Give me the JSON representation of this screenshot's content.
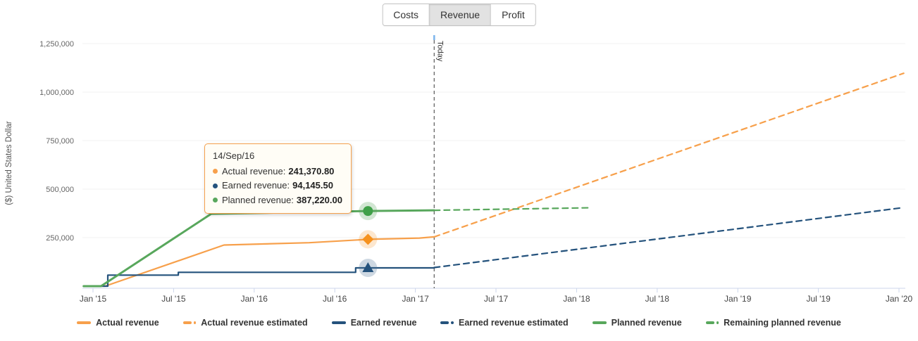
{
  "tabs": {
    "items": [
      {
        "label": "Costs",
        "active": false
      },
      {
        "label": "Revenue",
        "active": true
      },
      {
        "label": "Profit",
        "active": false
      }
    ]
  },
  "chart_data": {
    "type": "line",
    "ylabel": "($) United States Dollar",
    "currency": "United States Dollar",
    "grid": true,
    "legend_position": "bottom",
    "x_axis": {
      "start": "Jan 2015",
      "end": "Jan 2020",
      "ticks": [
        {
          "month": 0,
          "label": "Jan '15"
        },
        {
          "month": 6,
          "label": "Jul '15"
        },
        {
          "month": 12,
          "label": "Jan '16"
        },
        {
          "month": 18,
          "label": "Jul '16"
        },
        {
          "month": 24,
          "label": "Jan '17"
        },
        {
          "month": 30,
          "label": "Jul '17"
        },
        {
          "month": 36,
          "label": "Jan '18"
        },
        {
          "month": 42,
          "label": "Jul '18"
        },
        {
          "month": 48,
          "label": "Jan '19"
        },
        {
          "month": 54,
          "label": "Jul '19"
        },
        {
          "month": 60,
          "label": "Jan '20"
        }
      ]
    },
    "y_axis": {
      "ylim": [
        0,
        1312500
      ],
      "ticks": [
        {
          "value": 250000,
          "label": "250,000"
        },
        {
          "value": 500000,
          "label": "500,000"
        },
        {
          "value": 750000,
          "label": "750,000"
        },
        {
          "value": 1000000,
          "label": "1,000,000"
        },
        {
          "value": 1250000,
          "label": "1,250,000"
        }
      ]
    },
    "today_line": {
      "month": 25.4,
      "label": "Today",
      "color": "#666666",
      "tick_color": "#7cb5ec"
    },
    "series": [
      {
        "name": "Actual revenue",
        "color": "#F7A04B",
        "style": "solid",
        "width": 2.2,
        "points": [
          [
            -0.7,
            0
          ],
          [
            0.9,
            0
          ],
          [
            9.75,
            212000
          ],
          [
            16.1,
            224000
          ],
          [
            20.47,
            241370.8
          ],
          [
            24.3,
            248000
          ],
          [
            25.4,
            254000
          ]
        ]
      },
      {
        "name": "Actual revenue estimated",
        "color": "#F7A04B",
        "style": "dashed",
        "width": 2.2,
        "points": [
          [
            25.4,
            254000
          ],
          [
            60.35,
            1097000
          ]
        ]
      },
      {
        "name": "Earned revenue",
        "color": "#24527C",
        "style": "solid",
        "width": 2.2,
        "points": [
          [
            -0.7,
            0
          ],
          [
            1.1,
            0
          ],
          [
            1.1,
            57000
          ],
          [
            6.35,
            57000
          ],
          [
            6.35,
            71500
          ],
          [
            19.55,
            71500
          ],
          [
            19.55,
            94145.5
          ],
          [
            25.4,
            94145.5
          ]
        ]
      },
      {
        "name": "Earned revenue estimated",
        "color": "#24527C",
        "style": "dashed",
        "width": 2.2,
        "points": [
          [
            25.4,
            96000
          ],
          [
            60.35,
            405000
          ]
        ]
      },
      {
        "name": "Planned revenue",
        "color": "#58A75C",
        "style": "solid",
        "width": 3,
        "points": [
          [
            -0.7,
            0
          ],
          [
            0.6,
            0
          ],
          [
            8.8,
            373000
          ],
          [
            20.47,
            387220
          ],
          [
            25.4,
            391000
          ]
        ]
      },
      {
        "name": "Remaining planned revenue",
        "color": "#58A75C",
        "style": "dashed",
        "width": 2.2,
        "points": [
          [
            25.4,
            391000
          ],
          [
            37.1,
            404000
          ]
        ]
      }
    ],
    "markers": {
      "month": 20.47,
      "date": "14/Sep/16",
      "items": [
        {
          "series": "Planned revenue",
          "shape": "circle",
          "value": 387220,
          "color": "#3FA048",
          "halo": "rgba(88,167,92,0.28)"
        },
        {
          "series": "Actual revenue",
          "shape": "diamond",
          "value": 241370.8,
          "color": "#F6921E",
          "halo": "rgba(246,146,30,0.22)"
        },
        {
          "series": "Earned revenue",
          "shape": "triangle",
          "value": 94145.5,
          "color": "#24527C",
          "halo": "rgba(80,115,150,0.28)"
        }
      ]
    }
  },
  "tooltip": {
    "date": "14/Sep/16",
    "rows": [
      {
        "label": "Actual revenue:",
        "value": "241,370.80",
        "color": "#F7A04B"
      },
      {
        "label": "Earned revenue:",
        "value": "94,145.50",
        "color": "#24527C"
      },
      {
        "label": "Planned revenue:",
        "value": "387,220.00",
        "color": "#58A75C"
      }
    ]
  },
  "legend": {
    "items": [
      {
        "label": "Actual revenue",
        "color": "#F7A04B",
        "dashed": false
      },
      {
        "label": "Actual revenue estimated",
        "color": "#F7A04B",
        "dashed": true
      },
      {
        "label": "Earned revenue",
        "color": "#24527C",
        "dashed": false
      },
      {
        "label": "Earned revenue estimated",
        "color": "#24527C",
        "dashed": true
      },
      {
        "label": "Planned revenue",
        "color": "#58A75C",
        "dashed": false
      },
      {
        "label": "Remaining planned revenue",
        "color": "#58A75C",
        "dashed": true
      }
    ]
  },
  "colors": {
    "gridline": "#f0f0f0",
    "axis": "#ccd6eb",
    "x_label": "#444444",
    "y_label": "#666666",
    "axis_title": "#555555"
  }
}
